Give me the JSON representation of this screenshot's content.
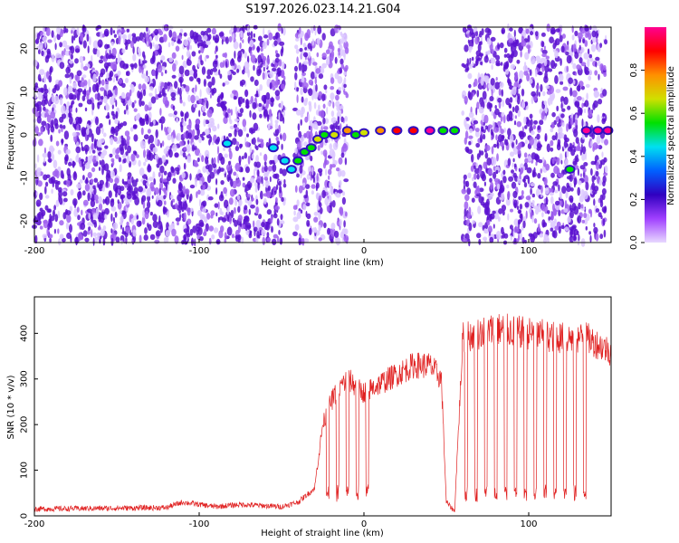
{
  "title": "S197.2026.023.14.21.G04",
  "chart_data": [
    {
      "type": "heatmap",
      "xlabel": "Height of straight line (km)",
      "ylabel": "Frequency (Hz)",
      "xlim": [
        -200,
        150
      ],
      "ylim": [
        -25,
        25
      ],
      "xticks": [
        -200,
        -100,
        0,
        100
      ],
      "xtick_labels": [
        "-200",
        "-100",
        "0",
        "100"
      ],
      "yticks": [
        -20,
        -10,
        0,
        10,
        20
      ],
      "ytick_labels": [
        "-20",
        "-10",
        "0",
        "10",
        "20"
      ],
      "colorbar": {
        "label": "Normalized spectral amplitude",
        "range": [
          0,
          1
        ],
        "ticks": [
          0.0,
          0.2,
          0.4,
          0.6,
          0.8
        ],
        "tick_labels": [
          "0.0",
          "0.2",
          "0.4",
          "0.6",
          "0.8"
        ],
        "colors": [
          "#e8d8ff",
          "#a040ff",
          "#3000c0",
          "#0060ff",
          "#00e0f0",
          "#00e000",
          "#d0e000",
          "#ff9000",
          "#ff0000",
          "#ff0090"
        ]
      },
      "noise_regions": [
        {
          "x": [
            -200,
            -48
          ],
          "level": 0.18
        },
        {
          "x": [
            -42,
            -10
          ],
          "level": 0.12
        },
        {
          "x": [
            60,
            147
          ],
          "level": 0.18
        }
      ],
      "signal_trace": [
        {
          "x": -83,
          "f": -2,
          "a": 0.45
        },
        {
          "x": -55,
          "f": -3,
          "a": 0.4
        },
        {
          "x": -48,
          "f": -6,
          "a": 0.45
        },
        {
          "x": -44,
          "f": -8,
          "a": 0.4
        },
        {
          "x": -40,
          "f": -6,
          "a": 0.5
        },
        {
          "x": -36,
          "f": -4,
          "a": 0.55
        },
        {
          "x": -32,
          "f": -3,
          "a": 0.6
        },
        {
          "x": -28,
          "f": -1,
          "a": 0.65
        },
        {
          "x": -24,
          "f": 0,
          "a": 0.6
        },
        {
          "x": -18,
          "f": 0,
          "a": 0.7
        },
        {
          "x": -10,
          "f": 1,
          "a": 0.75
        },
        {
          "x": -5,
          "f": 0,
          "a": 0.6
        },
        {
          "x": 0,
          "f": 0.5,
          "a": 0.7
        },
        {
          "x": 10,
          "f": 1,
          "a": 0.8
        },
        {
          "x": 20,
          "f": 1,
          "a": 0.85
        },
        {
          "x": 30,
          "f": 1,
          "a": 0.9
        },
        {
          "x": 40,
          "f": 1,
          "a": 0.95
        },
        {
          "x": 48,
          "f": 1,
          "a": 0.6
        },
        {
          "x": 55,
          "f": 1,
          "a": 0.55
        },
        {
          "x": 125,
          "f": -8,
          "a": 0.55
        },
        {
          "x": 135,
          "f": 1,
          "a": 0.95
        },
        {
          "x": 142,
          "f": 1,
          "a": 0.95
        },
        {
          "x": 148,
          "f": 1,
          "a": 0.95
        }
      ]
    },
    {
      "type": "line",
      "xlabel": "Height of straight line (km)",
      "ylabel": "SNR (10 * v/v)",
      "xlim": [
        -200,
        150
      ],
      "ylim": [
        0,
        480
      ],
      "xticks": [
        -200,
        -100,
        0,
        100
      ],
      "xtick_labels": [
        "-200",
        "-100",
        "0",
        "100"
      ],
      "yticks": [
        0,
        100,
        200,
        300,
        400
      ],
      "ytick_labels": [
        "0",
        "100",
        "200",
        "300",
        "400"
      ],
      "color": "#e02020",
      "envelope": [
        {
          "x": -200,
          "y": 15
        },
        {
          "x": -120,
          "y": 18
        },
        {
          "x": -110,
          "y": 30
        },
        {
          "x": -90,
          "y": 20
        },
        {
          "x": -75,
          "y": 25
        },
        {
          "x": -50,
          "y": 20
        },
        {
          "x": -40,
          "y": 30
        },
        {
          "x": -30,
          "y": 60
        },
        {
          "x": -25,
          "y": 200
        },
        {
          "x": -20,
          "y": 250
        },
        {
          "x": -15,
          "y": 280
        },
        {
          "x": -10,
          "y": 300
        },
        {
          "x": 0,
          "y": 270
        },
        {
          "x": 10,
          "y": 290
        },
        {
          "x": 20,
          "y": 310
        },
        {
          "x": 30,
          "y": 330
        },
        {
          "x": 40,
          "y": 330
        },
        {
          "x": 47,
          "y": 300
        },
        {
          "x": 50,
          "y": 30
        },
        {
          "x": 55,
          "y": 10
        },
        {
          "x": 60,
          "y": 390
        },
        {
          "x": 80,
          "y": 410
        },
        {
          "x": 100,
          "y": 400
        },
        {
          "x": 120,
          "y": 390
        },
        {
          "x": 135,
          "y": 390
        },
        {
          "x": 150,
          "y": 360
        }
      ],
      "dropouts": [
        -22,
        -16,
        -10,
        -4,
        2,
        62,
        68,
        74,
        80,
        86,
        92,
        98,
        104,
        110,
        116,
        122,
        128,
        134
      ]
    }
  ]
}
